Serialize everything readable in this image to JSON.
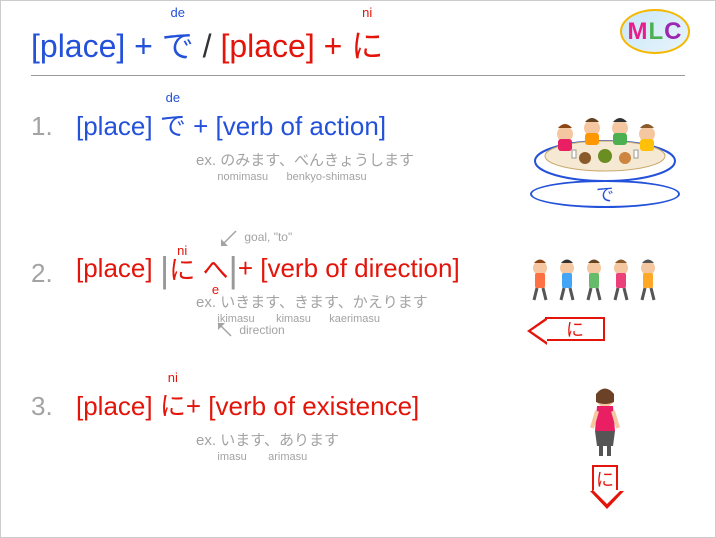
{
  "logo": {
    "m": "M",
    "l": "L",
    "c": "C"
  },
  "header": {
    "place1": "[place]",
    "plus": " + ",
    "de": "で",
    "de_ruby": "de",
    "slash": " / ",
    "place2": "[place]",
    "ni": "に",
    "ni_ruby": "ni"
  },
  "entries": [
    {
      "num": "1.",
      "place": "[place]",
      "particle": "で",
      "particle_ruby": "de",
      "particle_color": "#2351d9",
      "plus": " + ",
      "verb": "[verb of action]",
      "example_label": "ex. ",
      "example_jp": "のみます、べんきょうします",
      "example_romaji_html": "&nbsp;&nbsp;&nbsp;&nbsp;&nbsp;&nbsp;&nbsp;nomimasu&nbsp;&nbsp;&nbsp;&nbsp;&nbsp;&nbsp;benkyo-shimasu",
      "badge": "で"
    },
    {
      "num": "2.",
      "place": "[place]",
      "particle1": "に",
      "particle1_ruby": "ni",
      "particle2": "へ",
      "particle2_ruby": "e",
      "particle_color": "#e3140a",
      "plus": "+ ",
      "verb": "[verb of direction]",
      "goal_label": "goal, \"to\"",
      "direction_label": "direction",
      "example_label": "ex. ",
      "example_jp": "いきます、きます、かえります",
      "example_romaji_html": "&nbsp;&nbsp;&nbsp;&nbsp;&nbsp;&nbsp;&nbsp;ikimasu&nbsp;&nbsp;&nbsp;&nbsp;&nbsp;&nbsp;&nbsp;kimasu&nbsp;&nbsp;&nbsp;&nbsp;&nbsp;&nbsp;kaerimasu",
      "badge": "に"
    },
    {
      "num": "3.",
      "place": "[place]",
      "particle": "に",
      "particle_ruby": "ni",
      "particle_color": "#e3140a",
      "plus": "+ ",
      "verb": "[verb of existence]",
      "example_label": "ex. ",
      "example_jp": "います、あります",
      "example_romaji_html": "&nbsp;&nbsp;&nbsp;&nbsp;&nbsp;&nbsp;&nbsp;imasu&nbsp;&nbsp;&nbsp;&nbsp;&nbsp;&nbsp;&nbsp;arimasu",
      "badge": "に"
    }
  ],
  "colors": {
    "blue": "#2351d9",
    "red": "#e3140a",
    "gray": "#a3a3a3"
  }
}
